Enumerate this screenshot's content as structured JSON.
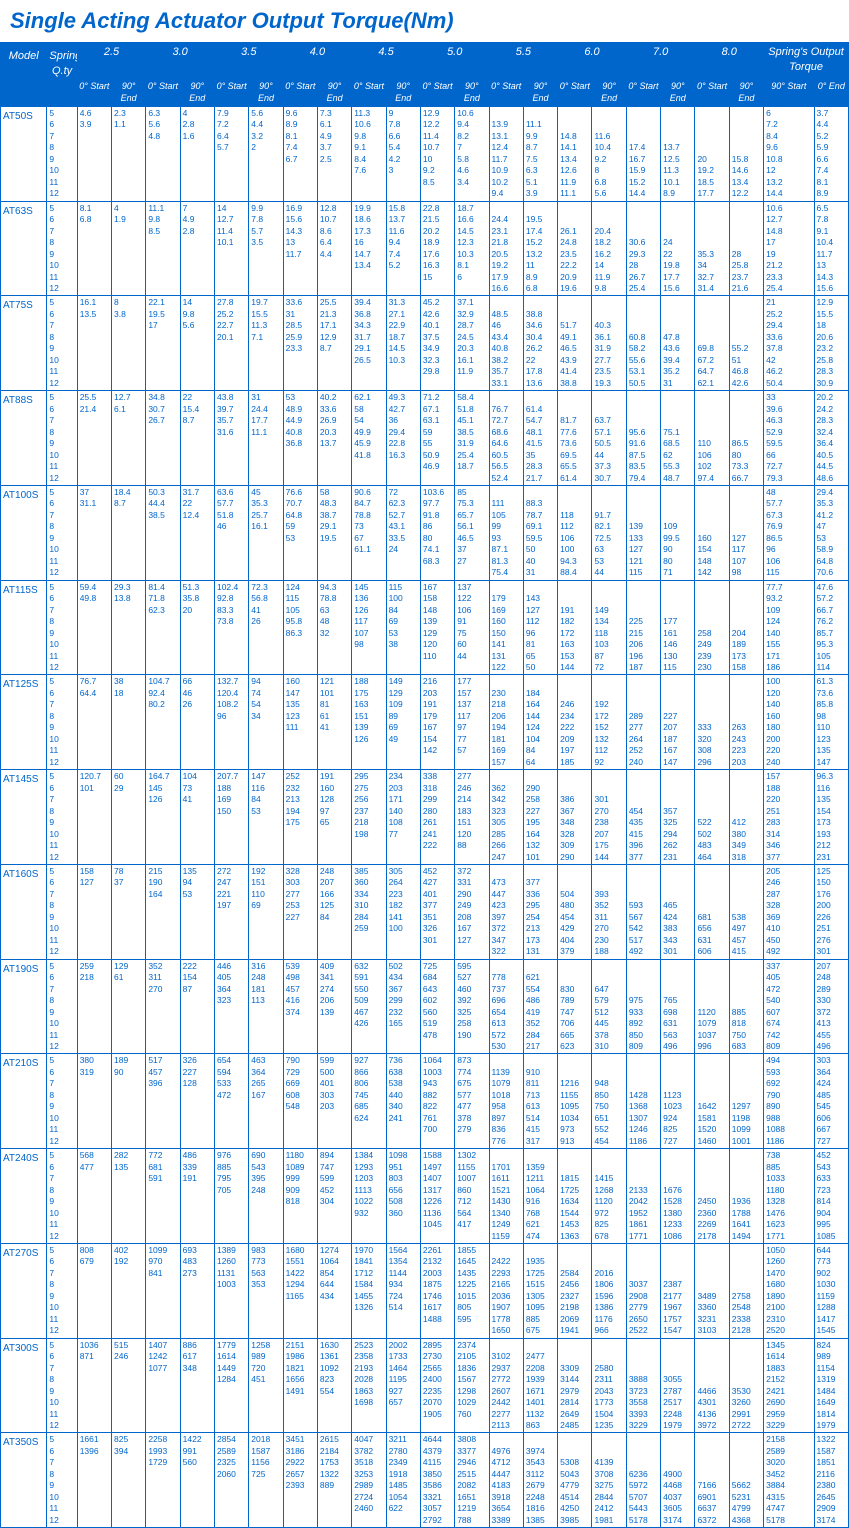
{
  "title": "Single Acting Actuator Output Torque(Nm)",
  "headers": {
    "model": "Model",
    "qty": "Spring\nQ.ty",
    "spring": "Spring's Output Torque",
    "start": "0°\nStart",
    "end": "90°\nEnd",
    "oend": "0°\nEnd"
  },
  "groups": [
    "2.5",
    "3.0",
    "3.5",
    "4.0",
    "4.5",
    "5.0",
    "5.5",
    "6.0",
    "7.0",
    "8.0"
  ],
  "qty": [
    "5",
    "6",
    "7",
    "8",
    "9",
    "10",
    "11",
    "12"
  ],
  "rows": [
    {
      "m": "AT50S",
      "c": [
        [
          "4.6\n3.9",
          "2.3\n1.1"
        ],
        [
          "6.3\n5.6\n4.8",
          "4\n2.8\n1.6"
        ],
        [
          "7.9\n7.2\n6.4\n5.7",
          "5.6\n4.4\n3.2\n2"
        ],
        [
          "9.6\n8.9\n8.1\n7.4\n6.7",
          "7.3\n6.1\n4.9\n3.7\n2.5"
        ],
        [
          "11.3\n10.6\n9.8\n9.1\n8.4\n7.6",
          "9\n7.8\n6.6\n5.4\n4.2\n3"
        ],
        [
          "12.9\n12.2\n11.4\n10.7\n10\n9.2\n8.5",
          "10.6\n9.4\n8.2\n7\n5.8\n4.6\n3.4"
        ],
        [
          "\n13.9\n13.1\n12.4\n11.7\n10.9\n10.2\n9.4",
          "\n11.1\n9.9\n8.7\n7.5\n6.3\n5.1\n3.9"
        ],
        [
          "\n\n14.8\n14.1\n13.4\n12.6\n11.9\n11.1",
          "\n\n11.6\n10.4\n9.2\n8\n6.8\n5.6"
        ],
        [
          "\n\n\n17.4\n16.7\n15.9\n15.2\n14.4",
          "\n\n\n13.7\n12.5\n11.3\n10.1\n8.9"
        ],
        [
          "\n\n\n\n20\n19.2\n18.5\n17.7",
          "\n\n\n\n15.8\n14.6\n13.4\n12.2"
        ]
      ],
      "o": [
        "6\n7.2\n8.4\n9.6\n10.8\n12\n13.2\n14.4",
        "3.7\n4.4\n5.2\n5.9\n6.6\n7.4\n8.1\n8.9"
      ]
    },
    {
      "m": "AT63S",
      "c": [
        [
          "8.1\n6.8",
          "4\n1.9"
        ],
        [
          "11.1\n9.8\n8.5",
          "7\n4.9\n2.8"
        ],
        [
          "14\n12.7\n11.4\n10.1",
          "9.9\n7.8\n5.7\n3.5"
        ],
        [
          "16.9\n15.6\n14.3\n13\n11.7",
          "12.8\n10.7\n8.6\n6.4\n4.4"
        ],
        [
          "19.9\n18.6\n17.3\n16\n14.7\n13.4",
          "15.8\n13.7\n11.6\n9.4\n7.4\n5.2"
        ],
        [
          "22.8\n21.5\n20.2\n18.9\n17.6\n16.3\n15",
          "18.7\n16.6\n14.5\n12.3\n10.3\n8.1\n6"
        ],
        [
          "\n24.4\n23.1\n21.8\n20.5\n19.2\n17.9\n16.6",
          "\n19.5\n17.4\n15.2\n13.2\n11\n8.9\n6.8"
        ],
        [
          "\n\n26.1\n24.8\n23.5\n22.2\n20.9\n19.6",
          "\n\n20.4\n18.2\n16.2\n14\n11.9\n9.8"
        ],
        [
          "\n\n\n30.6\n29.3\n28\n26.7\n25.4",
          "\n\n\n24\n22\n19.8\n17.7\n15.6"
        ],
        [
          "\n\n\n\n35.3\n34\n32.7\n31.4",
          "\n\n\n\n28\n25.8\n23.7\n21.6"
        ]
      ],
      "o": [
        "10.6\n12.7\n14.8\n17\n19\n21.2\n23.3\n25.4",
        "6.5\n7.8\n9.1\n10.4\n11.7\n13\n14.3\n15.6"
      ]
    },
    {
      "m": "AT75S",
      "c": [
        [
          "16.1\n13.5",
          "8\n3.8"
        ],
        [
          "22.1\n19.5\n17",
          "14\n9.8\n5.6"
        ],
        [
          "27.8\n25.2\n22.7\n20.1",
          "19.7\n15.5\n11.3\n7.1"
        ],
        [
          "33.6\n31\n28.5\n25.9\n23.3",
          "25.5\n21.3\n17.1\n12.9\n8.7"
        ],
        [
          "39.4\n36.8\n34.3\n31.7\n29.1\n26.5",
          "31.3\n27.1\n22.9\n18.7\n14.5\n10.3"
        ],
        [
          "45.2\n42.6\n40.1\n37.5\n34.9\n32.3\n29.8",
          "37.1\n32.9\n28.7\n24.5\n20.3\n16.1\n11.9"
        ],
        [
          "\n48.5\n46\n43.4\n40.8\n38.2\n35.7\n33.1",
          "\n38.8\n34.6\n30.4\n26.2\n22\n17.8\n13.6"
        ],
        [
          "\n\n51.7\n49.1\n46.5\n43.9\n41.4\n38.8",
          "\n\n40.3\n36.1\n31.9\n27.7\n23.5\n19.3"
        ],
        [
          "\n\n\n60.8\n58.2\n55.6\n53.1\n50.5",
          "\n\n\n47.8\n43.6\n39.4\n35.2\n31"
        ],
        [
          "\n\n\n\n69.8\n67.2\n64.7\n62.1",
          "\n\n\n\n55.2\n51\n46.8\n42.6"
        ]
      ],
      "o": [
        "21\n25.2\n29.4\n33.6\n37.8\n42\n46.2\n50.4",
        "12.9\n15.5\n18\n20.6\n23.2\n25.8\n28.3\n30.9"
      ]
    },
    {
      "m": "AT88S",
      "c": [
        [
          "25.5\n21.4",
          "12.7\n6.1"
        ],
        [
          "34.8\n30.7\n26.7",
          "22\n15.4\n8.7"
        ],
        [
          "43.8\n39.7\n35.7\n31.6",
          "31\n24.4\n17.7\n11.1"
        ],
        [
          "53\n48.9\n44.9\n40.8\n36.8",
          "40.2\n33.6\n26.9\n20.3\n13.7"
        ],
        [
          "62.1\n58\n54\n49.9\n45.9\n41.8",
          "49.3\n42.7\n36\n29.4\n22.8\n16.3"
        ],
        [
          "71.2\n67.1\n63.1\n59\n55\n50.9\n46.9",
          "58.4\n51.8\n45.1\n38.5\n31.9\n25.4\n18.7"
        ],
        [
          "\n76.7\n72.7\n68.6\n64.6\n60.5\n56.5\n52.4",
          "\n61.4\n54.7\n48.1\n41.5\n35\n28.3\n21.7"
        ],
        [
          "\n\n81.7\n77.6\n73.6\n69.5\n65.5\n61.4",
          "\n\n63.7\n57.1\n50.5\n44\n37.3\n30.7"
        ],
        [
          "\n\n\n95.6\n91.6\n87.5\n83.5\n79.4",
          "\n\n\n75.1\n68.5\n62\n55.3\n48.7"
        ],
        [
          "\n\n\n\n110\n106\n102\n97.4",
          "\n\n\n\n86.5\n80\n73.3\n66.7"
        ]
      ],
      "o": [
        "33\n39.6\n46.3\n52.9\n59.5\n66\n72.7\n79.3",
        "20.2\n24.2\n28.3\n32.4\n36.4\n40.5\n44.5\n48.6"
      ]
    },
    {
      "m": "AT100S",
      "c": [
        [
          "37\n31.1",
          "18.4\n8.7"
        ],
        [
          "50.3\n44.4\n38.5",
          "31.7\n22\n12.4"
        ],
        [
          "63.6\n57.7\n51.8\n46",
          "45\n35.3\n25.7\n16.1"
        ],
        [
          "76.6\n70.7\n64.8\n59\n53",
          "58\n48.3\n38.7\n29.1\n19.5"
        ],
        [
          "90.6\n84.7\n78.8\n73\n67\n61.1",
          "72\n62.3\n52.7\n43.1\n33.5\n24"
        ],
        [
          "103.6\n97.7\n91.8\n86\n80\n74.1\n68.3",
          "85\n75.3\n65.7\n56.1\n46.5\n37\n27"
        ],
        [
          "\n111\n105\n99\n93\n87.1\n81.3\n75.4",
          "\n88.3\n78.7\n69.1\n59.5\n50\n40\n31"
        ],
        [
          "\n\n118\n112\n106\n100\n94.3\n88.4",
          "\n\n91.7\n82.1\n72.5\n63\n53\n44"
        ],
        [
          "\n\n\n139\n133\n127\n121\n115",
          "\n\n\n109\n99.5\n90\n80\n71"
        ],
        [
          "\n\n\n\n160\n154\n148\n142",
          "\n\n\n\n127\n117\n107\n98"
        ]
      ],
      "o": [
        "48\n57.7\n67.3\n76.9\n86.5\n96\n106\n115",
        "29.4\n35.3\n41.2\n47\n53\n58.9\n64.8\n70.6"
      ]
    },
    {
      "m": "AT115S",
      "c": [
        [
          "59.4\n49.8",
          "29.3\n13.8"
        ],
        [
          "81.4\n71.8\n62.3",
          "51.3\n35.8\n20"
        ],
        [
          "102.4\n92.8\n83.3\n73.8",
          "72.3\n56.8\n41\n26"
        ],
        [
          "124\n115\n105\n95.8\n86.3",
          "94.3\n78.8\n63\n48\n32"
        ],
        [
          "145\n136\n126\n117\n107\n98",
          "115\n100\n84\n69\n53\n38"
        ],
        [
          "167\n158\n148\n139\n129\n120\n110",
          "137\n122\n106\n91\n75\n60\n44"
        ],
        [
          "\n179\n169\n160\n150\n141\n131\n122",
          "\n143\n127\n112\n96\n81\n65\n50"
        ],
        [
          "\n\n191\n182\n172\n163\n153\n144",
          "\n\n149\n134\n118\n103\n87\n72"
        ],
        [
          "\n\n\n225\n215\n206\n196\n187",
          "\n\n\n177\n161\n146\n130\n115"
        ],
        [
          "\n\n\n\n258\n249\n239\n230",
          "\n\n\n\n204\n189\n173\n158"
        ]
      ],
      "o": [
        "77.7\n93.2\n109\n124\n140\n155\n171\n186",
        "47.6\n57.2\n66.7\n76.2\n85.7\n95.3\n105\n114"
      ]
    },
    {
      "m": "AT125S",
      "c": [
        [
          "76.7\n64.4",
          "38\n18"
        ],
        [
          "104.7\n92.4\n80.2",
          "66\n46\n26"
        ],
        [
          "132.7\n120.4\n108.2\n96",
          "94\n74\n54\n34"
        ],
        [
          "160\n147\n135\n123\n111",
          "121\n101\n81\n61\n41"
        ],
        [
          "188\n175\n163\n151\n139\n126",
          "149\n129\n109\n89\n69\n49"
        ],
        [
          "216\n203\n191\n179\n167\n154\n142",
          "177\n157\n137\n117\n97\n77\n57"
        ],
        [
          "\n230\n218\n206\n194\n181\n169\n157",
          "\n184\n164\n144\n124\n104\n84\n64"
        ],
        [
          "\n\n246\n234\n222\n209\n197\n185",
          "\n\n192\n172\n152\n132\n112\n92"
        ],
        [
          "\n\n\n289\n277\n264\n252\n240",
          "\n\n\n227\n207\n187\n167\n147"
        ],
        [
          "\n\n\n\n333\n320\n308\n296",
          "\n\n\n\n263\n243\n223\n203"
        ]
      ],
      "o": [
        "100\n120\n140\n160\n180\n200\n220\n240",
        "61.3\n73.6\n85.8\n98\n110\n123\n135\n147"
      ]
    },
    {
      "m": "AT145S",
      "c": [
        [
          "120.7\n101",
          "60\n29"
        ],
        [
          "164.7\n145\n126",
          "104\n73\n41"
        ],
        [
          "207.7\n188\n169\n150",
          "147\n116\n84\n53"
        ],
        [
          "252\n232\n213\n194\n175",
          "191\n160\n128\n97\n65"
        ],
        [
          "295\n275\n256\n237\n218\n198",
          "234\n203\n171\n140\n108\n77"
        ],
        [
          "338\n318\n299\n280\n261\n241\n222",
          "277\n246\n214\n183\n151\n120\n88"
        ],
        [
          "\n362\n342\n323\n305\n285\n266\n247",
          "\n290\n258\n227\n195\n164\n132\n101"
        ],
        [
          "\n\n386\n367\n348\n328\n309\n290",
          "\n\n301\n270\n238\n207\n175\n144"
        ],
        [
          "\n\n\n454\n435\n415\n396\n377",
          "\n\n\n357\n325\n294\n262\n231"
        ],
        [
          "\n\n\n\n522\n502\n483\n464",
          "\n\n\n\n412\n380\n349\n318"
        ]
      ],
      "o": [
        "157\n188\n220\n251\n283\n314\n346\n377",
        "96.3\n116\n135\n154\n173\n193\n212\n231"
      ]
    },
    {
      "m": "AT160S",
      "c": [
        [
          "158\n127",
          "78\n37"
        ],
        [
          "215\n190\n164",
          "135\n94\n53"
        ],
        [
          "272\n247\n221\n197",
          "192\n151\n110\n69"
        ],
        [
          "328\n303\n277\n253\n227",
          "248\n207\n166\n125\n84"
        ],
        [
          "385\n360\n334\n310\n284\n259",
          "305\n264\n223\n182\n141\n100"
        ],
        [
          "452\n427\n401\n377\n351\n326\n301",
          "372\n331\n290\n249\n208\n167\n127"
        ],
        [
          "\n473\n447\n423\n397\n372\n347\n322",
          "\n377\n336\n295\n254\n213\n173\n131"
        ],
        [
          "\n\n504\n480\n454\n429\n404\n379",
          "\n\n393\n352\n311\n270\n230\n188"
        ],
        [
          "\n\n\n593\n567\n542\n517\n492",
          "\n\n\n465\n424\n383\n343\n301"
        ],
        [
          "\n\n\n\n681\n656\n631\n606",
          "\n\n\n\n538\n497\n457\n415"
        ]
      ],
      "o": [
        "205\n246\n287\n328\n369\n410\n450\n492",
        "125\n150\n176\n200\n226\n251\n276\n301"
      ]
    },
    {
      "m": "AT190S",
      "c": [
        [
          "259\n218",
          "129\n61"
        ],
        [
          "352\n311\n270",
          "222\n154\n87"
        ],
        [
          "446\n405\n364\n323",
          "316\n248\n181\n113"
        ],
        [
          "539\n498\n457\n416\n374",
          "409\n341\n274\n206\n139"
        ],
        [
          "632\n591\n550\n509\n467\n426",
          "502\n434\n367\n299\n232\n165"
        ],
        [
          "725\n684\n643\n602\n560\n519\n478",
          "595\n527\n460\n392\n325\n258\n190"
        ],
        [
          "\n778\n737\n696\n654\n613\n572\n530",
          "\n621\n554\n486\n419\n352\n284\n217"
        ],
        [
          "\n\n830\n789\n747\n706\n665\n623",
          "\n\n647\n579\n512\n445\n378\n310"
        ],
        [
          "\n\n\n975\n933\n892\n850\n809",
          "\n\n\n765\n698\n631\n563\n496"
        ],
        [
          "\n\n\n\n1120\n1079\n1037\n996",
          "\n\n\n\n885\n818\n750\n683"
        ]
      ],
      "o": [
        "337\n405\n472\n540\n607\n674\n742\n809",
        "207\n248\n289\n330\n372\n413\n455\n496"
      ]
    },
    {
      "m": "AT210S",
      "c": [
        [
          "380\n319",
          "189\n90"
        ],
        [
          "517\n457\n396",
          "326\n227\n128"
        ],
        [
          "654\n594\n533\n472",
          "463\n364\n265\n167"
        ],
        [
          "790\n729\n669\n608\n548",
          "599\n500\n401\n303\n203"
        ],
        [
          "927\n866\n806\n745\n685\n624",
          "736\n638\n538\n440\n340\n241"
        ],
        [
          "1064\n1003\n943\n882\n822\n761\n700",
          "873\n774\n675\n577\n477\n378\n279"
        ],
        [
          "\n1139\n1079\n1018\n958\n897\n836\n776",
          "\n910\n811\n713\n613\n514\n415\n317"
        ],
        [
          "\n\n1216\n1155\n1095\n1034\n973\n913",
          "\n\n948\n850\n750\n651\n552\n454"
        ],
        [
          "\n\n\n1428\n1368\n1307\n1246\n1186",
          "\n\n\n1123\n1023\n924\n825\n727"
        ],
        [
          "\n\n\n\n1642\n1581\n1520\n1460",
          "\n\n\n\n1297\n1198\n1099\n1001"
        ]
      ],
      "o": [
        "494\n593\n692\n790\n890\n988\n1088\n1186",
        "303\n364\n424\n485\n545\n606\n667\n727"
      ]
    },
    {
      "m": "AT240S",
      "c": [
        [
          "568\n477",
          "282\n135"
        ],
        [
          "772\n681\n591",
          "486\n339\n191"
        ],
        [
          "976\n885\n795\n705",
          "690\n543\n395\n248"
        ],
        [
          "1180\n1089\n999\n909\n818",
          "894\n747\n599\n452\n304"
        ],
        [
          "1384\n1293\n1203\n1113\n1022\n932",
          "1098\n951\n803\n656\n508\n360"
        ],
        [
          "1588\n1497\n1407\n1317\n1226\n1136\n1045",
          "1302\n1155\n1007\n860\n712\n564\n417"
        ],
        [
          "\n1701\n1611\n1521\n1430\n1340\n1249\n1159",
          "\n1359\n1211\n1064\n916\n768\n621\n474"
        ],
        [
          "\n\n1815\n1725\n1634\n1544\n1453\n1363",
          "\n\n1415\n1268\n1120\n972\n825\n678"
        ],
        [
          "\n\n\n2133\n2042\n1952\n1861\n1771",
          "\n\n\n1676\n1528\n1380\n1233\n1086"
        ],
        [
          "\n\n\n\n2450\n2360\n2269\n2178",
          "\n\n\n\n1936\n1788\n1641\n1494"
        ]
      ],
      "o": [
        "738\n885\n1033\n1180\n1328\n1476\n1623\n1771",
        "452\n543\n633\n723\n814\n904\n995\n1085"
      ]
    },
    {
      "m": "AT270S",
      "c": [
        [
          "808\n679",
          "402\n192"
        ],
        [
          "1099\n970\n841",
          "693\n483\n273"
        ],
        [
          "1389\n1260\n1131\n1003",
          "983\n773\n563\n353"
        ],
        [
          "1680\n1551\n1422\n1294\n1165",
          "1274\n1064\n854\n644\n434"
        ],
        [
          "1970\n1841\n1712\n1584\n1455\n1326",
          "1564\n1354\n1144\n934\n724\n514"
        ],
        [
          "2261\n2132\n2003\n1875\n1746\n1617\n1488",
          "1855\n1645\n1435\n1225\n1015\n805\n595"
        ],
        [
          "\n2422\n2293\n2165\n2036\n1907\n1778\n1650",
          "\n1935\n1725\n1515\n1305\n1095\n885\n675"
        ],
        [
          "\n\n2584\n2456\n2327\n2198\n2069\n1941",
          "\n\n2016\n1806\n1596\n1386\n1176\n966"
        ],
        [
          "\n\n\n3037\n2908\n2779\n2650\n2522",
          "\n\n\n2387\n2177\n1967\n1757\n1547"
        ],
        [
          "\n\n\n\n3489\n3360\n3231\n3103",
          "\n\n\n\n2758\n2548\n2338\n2128"
        ]
      ],
      "o": [
        "1050\n1260\n1470\n1680\n1890\n2100\n2310\n2520",
        "644\n773\n902\n1030\n1159\n1288\n1417\n1545"
      ]
    },
    {
      "m": "AT300S",
      "c": [
        [
          "1036\n871",
          "515\n246"
        ],
        [
          "1407\n1242\n1077",
          "886\n617\n348"
        ],
        [
          "1779\n1614\n1449\n1284",
          "1258\n989\n720\n451"
        ],
        [
          "2151\n1986\n1821\n1656\n1491",
          "1630\n1361\n1092\n823\n554"
        ],
        [
          "2523\n2358\n2193\n2028\n1863\n1698",
          "2002\n1733\n1464\n1195\n927\n657"
        ],
        [
          "2895\n2730\n2565\n2400\n2235\n2070\n1905",
          "2374\n2105\n1836\n1567\n1298\n1029\n760"
        ],
        [
          "\n3102\n2937\n2772\n2607\n2442\n2277\n2113",
          "\n2477\n2208\n1939\n1671\n1401\n1132\n863"
        ],
        [
          "\n\n3309\n3144\n2979\n2814\n2649\n2485",
          "\n\n2580\n2311\n2043\n1773\n1504\n1235"
        ],
        [
          "\n\n\n3888\n3723\n3558\n3393\n3229",
          "\n\n\n3055\n2787\n2517\n2248\n1979"
        ],
        [
          "\n\n\n\n4466\n4301\n4136\n3972",
          "\n\n\n\n3530\n3260\n2991\n2722"
        ]
      ],
      "o": [
        "1345\n1614\n1883\n2152\n2421\n2690\n2959\n3229",
        "824\n989\n1154\n1319\n1484\n1649\n1814\n1979"
      ]
    },
    {
      "m": "AT350S",
      "c": [
        [
          "1661\n1396",
          "825\n394"
        ],
        [
          "2258\n1993\n1729",
          "1422\n991\n560"
        ],
        [
          "2854\n2589\n2325\n2060",
          "2018\n1587\n1156\n725"
        ],
        [
          "3451\n3186\n2922\n2657\n2393",
          "2615\n2184\n1753\n1322\n889"
        ],
        [
          "4047\n3782\n3518\n3253\n2989\n2724\n2460",
          "3211\n2780\n2349\n1918\n1485\n1054\n622"
        ],
        [
          "4644\n4379\n4115\n3850\n3586\n3321\n3057\n2792",
          "3808\n3377\n2946\n2515\n2082\n1651\n1219\n788"
        ],
        [
          "\n4976\n4712\n4447\n4183\n3918\n3654\n3389",
          "\n3974\n3543\n3112\n2679\n2248\n1816\n1385"
        ],
        [
          "\n\n5308\n5043\n4779\n4514\n4250\n3985",
          "\n\n4139\n3708\n3275\n2844\n2412\n1981"
        ],
        [
          "\n\n\n6236\n5972\n5707\n5443\n5178",
          "\n\n\n4900\n4468\n4037\n3605\n3174"
        ],
        [
          "\n\n\n\n7166\n6901\n6637\n6372",
          "\n\n\n\n5662\n5231\n4799\n4368"
        ]
      ],
      "o": [
        "2158\n2589\n3020\n3452\n3884\n4315\n4747\n5178",
        "1322\n1587\n1851\n2116\n2380\n2645\n2909\n3174"
      ]
    }
  ]
}
